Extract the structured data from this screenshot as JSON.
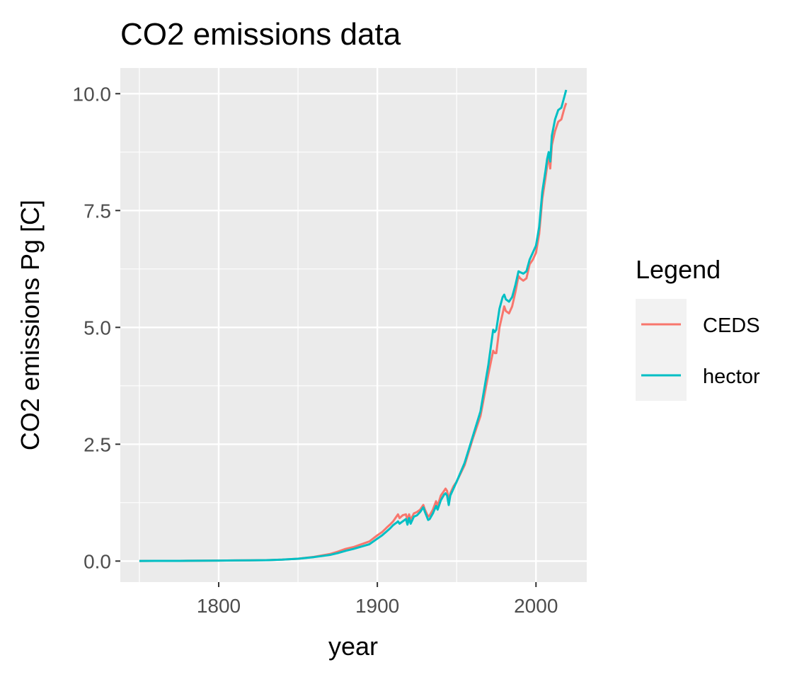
{
  "chart_data": {
    "type": "line",
    "title": "CO2 emissions data",
    "xlabel": "year",
    "ylabel": "CO2 emissions Pg [C]",
    "xlim": [
      1738,
      2032
    ],
    "ylim": [
      -0.45,
      10.55
    ],
    "x_ticks": [
      1800,
      1900,
      2000
    ],
    "x_tick_labels": [
      "1800",
      "1900",
      "2000"
    ],
    "y_ticks": [
      0,
      2.5,
      5,
      7.5,
      10
    ],
    "y_tick_labels": [
      "0.0",
      "2.5",
      "5.0",
      "7.5",
      "10.0"
    ],
    "grid": true,
    "legend": {
      "title": "Legend",
      "position": "right",
      "entries": [
        "CEDS",
        "hector"
      ]
    },
    "colors": {
      "CEDS": "#F8766D",
      "hector": "#00BFC4",
      "panel": "#EBEBEB",
      "grid": "#FFFFFF"
    },
    "series": [
      {
        "name": "CEDS",
        "x": [
          1750,
          1760,
          1770,
          1780,
          1790,
          1800,
          1810,
          1820,
          1830,
          1840,
          1850,
          1860,
          1870,
          1875,
          1880,
          1885,
          1890,
          1895,
          1900,
          1903,
          1906,
          1908,
          1910,
          1912,
          1913,
          1914,
          1916,
          1918,
          1919,
          1920,
          1921,
          1923,
          1925,
          1927,
          1929,
          1930,
          1932,
          1933,
          1935,
          1937,
          1938,
          1940,
          1942,
          1943,
          1944,
          1945,
          1946,
          1948,
          1950,
          1955,
          1960,
          1965,
          1970,
          1973,
          1974,
          1975,
          1977,
          1979,
          1980,
          1981,
          1983,
          1985,
          1987,
          1989,
          1990,
          1992,
          1994,
          1996,
          1998,
          2000,
          2002,
          2004,
          2006,
          2007,
          2008,
          2009,
          2010,
          2012,
          2014,
          2016,
          2018,
          2019
        ],
        "y": [
          0.003,
          0.004,
          0.005,
          0.006,
          0.008,
          0.01,
          0.013,
          0.016,
          0.02,
          0.03,
          0.05,
          0.09,
          0.15,
          0.2,
          0.26,
          0.3,
          0.36,
          0.42,
          0.55,
          0.62,
          0.72,
          0.78,
          0.85,
          0.95,
          1.0,
          0.92,
          0.98,
          1.0,
          0.88,
          1.0,
          0.88,
          1.02,
          1.05,
          1.1,
          1.2,
          1.1,
          0.95,
          0.98,
          1.1,
          1.28,
          1.18,
          1.4,
          1.5,
          1.55,
          1.5,
          1.3,
          1.45,
          1.6,
          1.7,
          2.05,
          2.6,
          3.1,
          4.0,
          4.5,
          4.45,
          4.45,
          5.0,
          5.3,
          5.45,
          5.35,
          5.3,
          5.45,
          5.75,
          6.1,
          6.05,
          6.0,
          6.05,
          6.35,
          6.45,
          6.6,
          7.0,
          7.75,
          8.2,
          8.45,
          8.7,
          8.4,
          8.9,
          9.2,
          9.4,
          9.45,
          9.7,
          9.8
        ]
      },
      {
        "name": "hector",
        "x": [
          1750,
          1760,
          1770,
          1780,
          1790,
          1800,
          1810,
          1820,
          1830,
          1840,
          1850,
          1860,
          1870,
          1875,
          1880,
          1885,
          1890,
          1895,
          1900,
          1903,
          1906,
          1908,
          1910,
          1912,
          1913,
          1914,
          1916,
          1918,
          1919,
          1920,
          1921,
          1923,
          1925,
          1927,
          1929,
          1930,
          1932,
          1933,
          1935,
          1937,
          1938,
          1940,
          1942,
          1943,
          1944,
          1945,
          1946,
          1948,
          1950,
          1955,
          1960,
          1965,
          1970,
          1973,
          1974,
          1975,
          1977,
          1979,
          1980,
          1981,
          1983,
          1985,
          1987,
          1989,
          1990,
          1992,
          1994,
          1996,
          1998,
          2000,
          2002,
          2004,
          2006,
          2007,
          2008,
          2009,
          2010,
          2012,
          2014,
          2016,
          2018,
          2019
        ],
        "y": [
          0.003,
          0.004,
          0.005,
          0.006,
          0.008,
          0.01,
          0.013,
          0.016,
          0.02,
          0.03,
          0.05,
          0.085,
          0.13,
          0.17,
          0.22,
          0.26,
          0.31,
          0.36,
          0.48,
          0.55,
          0.64,
          0.7,
          0.77,
          0.82,
          0.85,
          0.8,
          0.85,
          0.9,
          0.78,
          0.92,
          0.8,
          0.95,
          0.98,
          1.05,
          1.15,
          1.05,
          0.88,
          0.9,
          1.02,
          1.18,
          1.1,
          1.3,
          1.42,
          1.45,
          1.4,
          1.2,
          1.4,
          1.55,
          1.7,
          2.1,
          2.65,
          3.2,
          4.2,
          4.95,
          4.9,
          4.95,
          5.4,
          5.65,
          5.7,
          5.6,
          5.55,
          5.65,
          5.9,
          6.2,
          6.18,
          6.15,
          6.2,
          6.45,
          6.6,
          6.75,
          7.15,
          7.9,
          8.35,
          8.6,
          8.75,
          8.55,
          9.1,
          9.45,
          9.65,
          9.7,
          9.95,
          10.08
        ]
      }
    ]
  }
}
